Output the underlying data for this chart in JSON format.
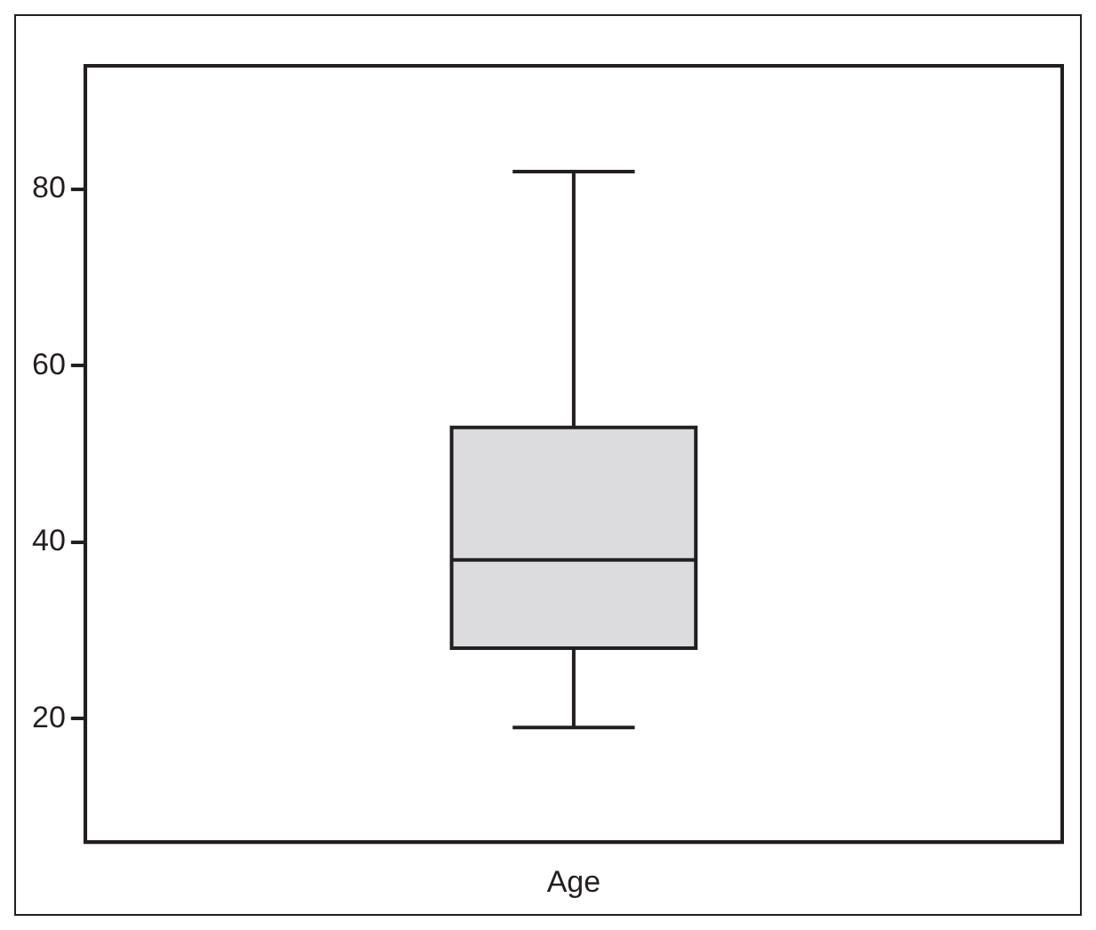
{
  "chart_data": {
    "type": "box",
    "categories": [
      "Age"
    ],
    "series": [
      {
        "color": "#dcdcde",
        "boxes": [
          {
            "low": 19,
            "q1": 28,
            "median": 38,
            "q3": 53,
            "high": 82
          }
        ]
      }
    ],
    "ylim": [
      6,
      94
    ],
    "yticks": [
      20,
      40,
      60,
      80
    ],
    "grid": false,
    "legend": false
  }
}
